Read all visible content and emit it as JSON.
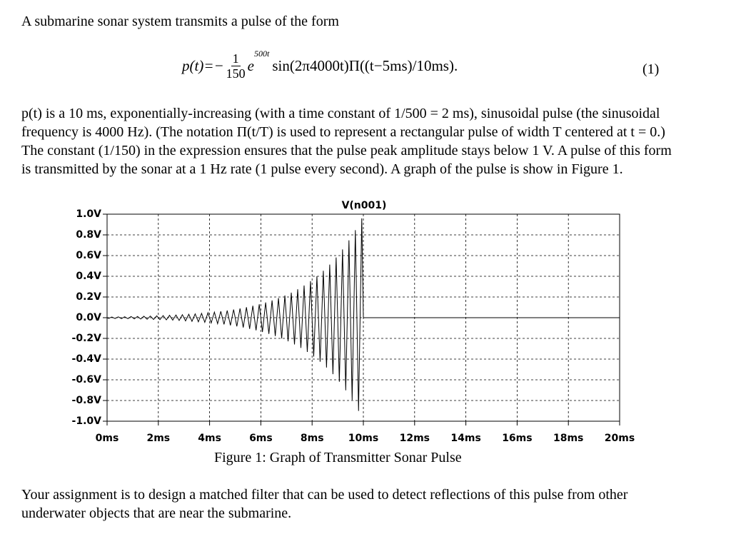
{
  "intro": "A submarine sonar system transmits a pulse of the form",
  "equation": {
    "lhs": "p(t)=−",
    "numerator": "1",
    "denominator": "150",
    "base": "e",
    "exponent": "500t",
    "rest": "sin(2π4000t)Π((t−5ms)/10ms).",
    "number": "(1)"
  },
  "paragraph": "p(t) is a 10 ms, exponentially-increasing (with a time constant of 1/500 = 2 ms), sinusoidal pulse (the sinusoidal frequency is 4000 Hz). (The notation Π(t/T) is used to represent a rectangular pulse of width T centered at t = 0.) The constant (1/150) in the expression ensures that the pulse peak amplitude stays below 1 V. A pulse of this form is transmitted by the sonar at a 1 Hz rate (1 pulse every second). A graph of the pulse is show in Figure 1.",
  "chart_data": {
    "type": "line",
    "title": "V(n001)",
    "color": "#000000",
    "grid": true,
    "x": [
      0,
      0.0625,
      0.1875,
      0.3125,
      0.4375,
      0.5625,
      0.6875,
      0.8125,
      0.9375,
      1.0625,
      1.1875,
      1.3125,
      1.4375,
      1.5625,
      1.6875,
      1.8125,
      1.9375,
      2.0625,
      2.1875,
      2.3125,
      2.4375,
      2.5625,
      2.6875,
      2.8125,
      2.9375,
      3.0625,
      3.1875,
      3.3125,
      3.4375,
      3.5625,
      3.6875,
      3.8125,
      3.9375,
      4.0625,
      4.1875,
      4.3125,
      4.4375,
      4.5625,
      4.6875,
      4.8125,
      4.9375,
      5.0625,
      5.1875,
      5.3125,
      5.4375,
      5.5625,
      5.6875,
      5.8125,
      5.9375,
      6.0625,
      6.1875,
      6.3125,
      6.4375,
      6.5625,
      6.6875,
      6.8125,
      6.9375,
      7.0625,
      7.1875,
      7.3125,
      7.4375,
      7.5625,
      7.6875,
      7.8125,
      7.9375,
      8.0625,
      8.1875,
      8.3125,
      8.4375,
      8.5625,
      8.6875,
      8.8125,
      8.9375,
      9.0625,
      9.1875,
      9.3125,
      9.4375,
      9.5625,
      9.6875,
      9.8125,
      9.9375,
      10,
      20
    ],
    "values": [
      0,
      -0.007,
      0.007,
      -0.008,
      0.008,
      -0.009,
      0.009,
      -0.01,
      0.011,
      -0.011,
      0.012,
      -0.013,
      0.014,
      -0.015,
      0.016,
      -0.017,
      0.018,
      -0.019,
      0.02,
      -0.021,
      0.023,
      -0.024,
      0.026,
      -0.027,
      0.029,
      -0.031,
      0.033,
      -0.035,
      0.037,
      -0.04,
      0.042,
      -0.045,
      0.048,
      -0.051,
      0.054,
      -0.058,
      0.061,
      -0.065,
      0.069,
      -0.074,
      0.079,
      -0.084,
      0.089,
      -0.095,
      0.101,
      -0.108,
      0.115,
      -0.122,
      0.13,
      -0.138,
      0.147,
      -0.157,
      0.167,
      -0.177,
      0.189,
      -0.201,
      0.214,
      -0.228,
      0.242,
      -0.258,
      0.275,
      -0.292,
      0.311,
      -0.331,
      0.353,
      -0.376,
      0.4,
      -0.426,
      0.453,
      -0.482,
      0.513,
      -0.546,
      0.582,
      -0.619,
      0.659,
      -0.702,
      0.747,
      -0.795,
      0.846,
      -0.901,
      0.959,
      0,
      0
    ],
    "xlim": [
      0,
      20
    ],
    "ylim": [
      -1,
      1
    ],
    "xticks": [
      {
        "value": 0,
        "label": "0ms"
      },
      {
        "value": 2,
        "label": "2ms"
      },
      {
        "value": 4,
        "label": "4ms"
      },
      {
        "value": 6,
        "label": "6ms"
      },
      {
        "value": 8,
        "label": "8ms"
      },
      {
        "value": 10,
        "label": "10ms"
      },
      {
        "value": 12,
        "label": "12ms"
      },
      {
        "value": 14,
        "label": "14ms"
      },
      {
        "value": 16,
        "label": "16ms"
      },
      {
        "value": 18,
        "label": "18ms"
      },
      {
        "value": 20,
        "label": "20ms"
      }
    ],
    "yticks": [
      {
        "value": 1,
        "label": "1.0V"
      },
      {
        "value": 0.8,
        "label": "0.8V"
      },
      {
        "value": 0.6,
        "label": "0.6V"
      },
      {
        "value": 0.4,
        "label": "0.4V"
      },
      {
        "value": 0.2,
        "label": "0.2V"
      },
      {
        "value": 0,
        "label": "0.0V"
      },
      {
        "value": -0.2,
        "label": "-0.2V"
      },
      {
        "value": -0.4,
        "label": "-0.4V"
      },
      {
        "value": -0.6,
        "label": "-0.6V"
      },
      {
        "value": -0.8,
        "label": "-0.8V"
      },
      {
        "value": -1,
        "label": "-1.0V"
      }
    ]
  },
  "caption": "Figure 1: Graph of Transmitter Sonar Pulse",
  "closing": "Your assignment is to design a matched filter that can be used to detect reflections of this pulse from other underwater objects that are near the submarine."
}
